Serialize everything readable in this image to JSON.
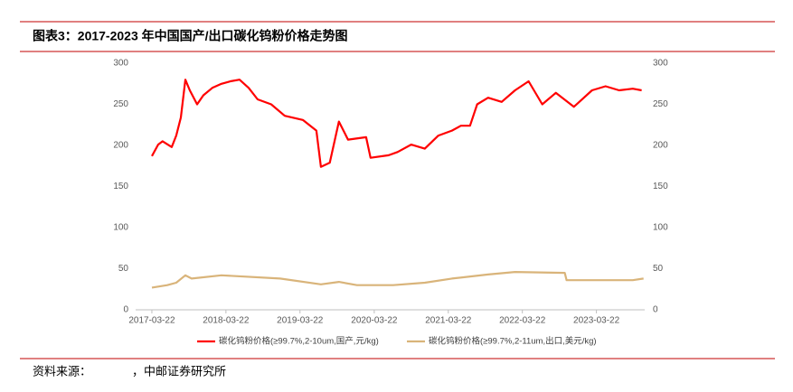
{
  "chart_data": {
    "type": "line",
    "title": "图表3：2017-2023 年中国国产/出口碳化钨粉价格走势图",
    "source_label": "资料来源：",
    "source": "，中邮证券研究所",
    "xlim": [
      "2017-01-01",
      "2023-11-15"
    ],
    "xticks": [
      "2017-03-22",
      "2018-03-22",
      "2019-03-22",
      "2020-03-22",
      "2021-03-22",
      "2022-03-22",
      "2023-03-22"
    ],
    "ylim": [
      0,
      300
    ],
    "yticks": [
      0,
      50,
      100,
      150,
      200,
      250,
      300
    ],
    "y2lim": [
      0,
      300
    ],
    "y2ticks": [
      0,
      50,
      100,
      150,
      200,
      250,
      300
    ],
    "legend": "bottom",
    "series": [
      {
        "name": "碳化钨粉价格(≥99.7%,2-10um,国产,元/kg)",
        "color": "#ff0000",
        "x": [
          "2017-03-22",
          "2017-04-22",
          "2017-05-14",
          "2017-06-28",
          "2017-07-20",
          "2017-08-12",
          "2017-09-03",
          "2017-09-25",
          "2017-10-31",
          "2017-12-01",
          "2018-01-14",
          "2018-02-28",
          "2018-04-13",
          "2018-05-28",
          "2018-07-12",
          "2018-08-25",
          "2018-10-31",
          "2019-01-06",
          "2019-04-05",
          "2019-06-11",
          "2019-07-03",
          "2019-08-16",
          "2019-09-30",
          "2019-11-14",
          "2020-02-11",
          "2020-03-04",
          "2020-06-01",
          "2020-07-15",
          "2020-09-20",
          "2020-11-26",
          "2021-02-01",
          "2021-04-09",
          "2021-05-23",
          "2021-07-07",
          "2021-08-11",
          "2021-10-04",
          "2021-12-10",
          "2022-02-14",
          "2022-04-22",
          "2022-06-28",
          "2022-09-03",
          "2022-12-01",
          "2023-02-28",
          "2023-05-06",
          "2023-07-12",
          "2023-09-17",
          "2023-10-31"
        ],
        "values": [
          187,
          201,
          205,
          198,
          212,
          234,
          280,
          267,
          250,
          261,
          270,
          275,
          278,
          280,
          270,
          256,
          250,
          236,
          231,
          218,
          174,
          179,
          229,
          207,
          210,
          185,
          188,
          192,
          201,
          196,
          212,
          218,
          224,
          224,
          250,
          258,
          253,
          267,
          278,
          250,
          264,
          247,
          267,
          272,
          267,
          269,
          267
        ]
      },
      {
        "name": "碳化钨粉价格(≥99.7%,2-11um,出口,美元/kg)",
        "color": "#d9b47a",
        "axis": "y2",
        "x": [
          "2017-03-22",
          "2017-06-06",
          "2017-07-20",
          "2017-09-03",
          "2017-10-04",
          "2018-02-28",
          "2018-12-14",
          "2019-07-03",
          "2019-09-30",
          "2019-12-28",
          "2020-06-23",
          "2020-11-26",
          "2021-04-09",
          "2021-10-04",
          "2022-02-14",
          "2022-10-17",
          "2022-10-26",
          "2023-09-17",
          "2023-11-09"
        ],
        "values": [
          27,
          30,
          33,
          42,
          38,
          42,
          38,
          31,
          34,
          30,
          30,
          33,
          38,
          43,
          46,
          45,
          36,
          36,
          38
        ]
      }
    ]
  }
}
